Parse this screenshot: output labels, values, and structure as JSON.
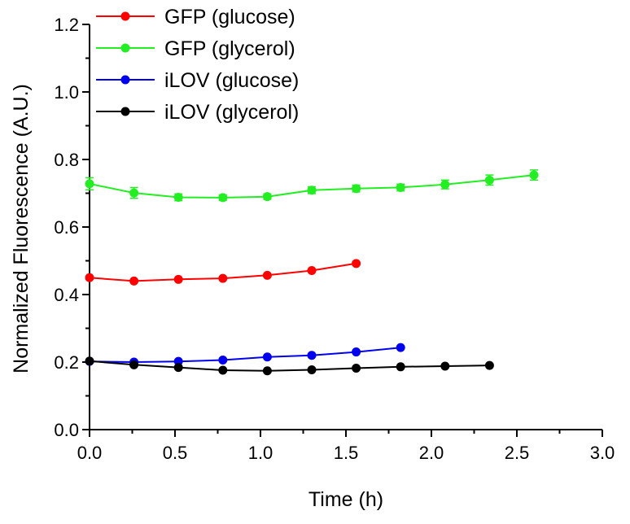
{
  "chart_data": {
    "type": "line",
    "title": "",
    "xlabel": "Time (h)",
    "ylabel": "Normalized Fluorescence (A.U.)",
    "xlim": [
      0,
      3.0
    ],
    "ylim": [
      0,
      1.2
    ],
    "xticks": [
      0.0,
      0.5,
      1.0,
      1.5,
      2.0,
      2.5,
      3.0
    ],
    "xtick_labels": [
      "0.0",
      "0.5",
      "1.0",
      "1.5",
      "2.0",
      "2.5",
      "3.0"
    ],
    "yticks": [
      0.0,
      0.2,
      0.4,
      0.6,
      0.8,
      1.0,
      1.2
    ],
    "ytick_labels": [
      "0.0",
      "0.2",
      "0.4",
      "0.6",
      "0.8",
      "1.0",
      "1.2"
    ],
    "grid": false,
    "legend_position": "top-left",
    "series": [
      {
        "name": "GFP (glucose)",
        "color": "#ff0000",
        "x": [
          0.0,
          0.26,
          0.52,
          0.78,
          1.04,
          1.3,
          1.56
        ],
        "y": [
          0.45,
          0.44,
          0.445,
          0.448,
          0.457,
          0.471,
          0.492
        ],
        "err": [
          0.005,
          0.005,
          0.005,
          0.005,
          0.005,
          0.006,
          0.006
        ]
      },
      {
        "name": "GFP (glycerol)",
        "color": "#22ee22",
        "x": [
          0.0,
          0.26,
          0.52,
          0.78,
          1.04,
          1.3,
          1.56,
          1.82,
          2.08,
          2.34,
          2.6
        ],
        "y": [
          0.728,
          0.701,
          0.688,
          0.687,
          0.69,
          0.709,
          0.714,
          0.717,
          0.726,
          0.739,
          0.754
        ],
        "err": [
          0.018,
          0.016,
          0.01,
          0.008,
          0.008,
          0.01,
          0.01,
          0.01,
          0.013,
          0.015,
          0.015
        ]
      },
      {
        "name": "iLOV (glucose)",
        "color": "#0000ee",
        "x": [
          0.0,
          0.26,
          0.52,
          0.78,
          1.04,
          1.3,
          1.56,
          1.82
        ],
        "y": [
          0.202,
          0.2,
          0.202,
          0.206,
          0.215,
          0.22,
          0.23,
          0.243
        ],
        "err": [
          0.004,
          0.004,
          0.004,
          0.004,
          0.004,
          0.004,
          0.004,
          0.004
        ]
      },
      {
        "name": "iLOV (glycerol)",
        "color": "#000000",
        "x": [
          0.0,
          0.26,
          0.52,
          0.78,
          1.04,
          1.3,
          1.56,
          1.82,
          2.08,
          2.34
        ],
        "y": [
          0.203,
          0.192,
          0.184,
          0.176,
          0.174,
          0.177,
          0.182,
          0.186,
          0.188,
          0.19
        ],
        "err": [
          0.004,
          0.004,
          0.004,
          0.004,
          0.004,
          0.004,
          0.004,
          0.004,
          0.004,
          0.004
        ]
      }
    ]
  }
}
